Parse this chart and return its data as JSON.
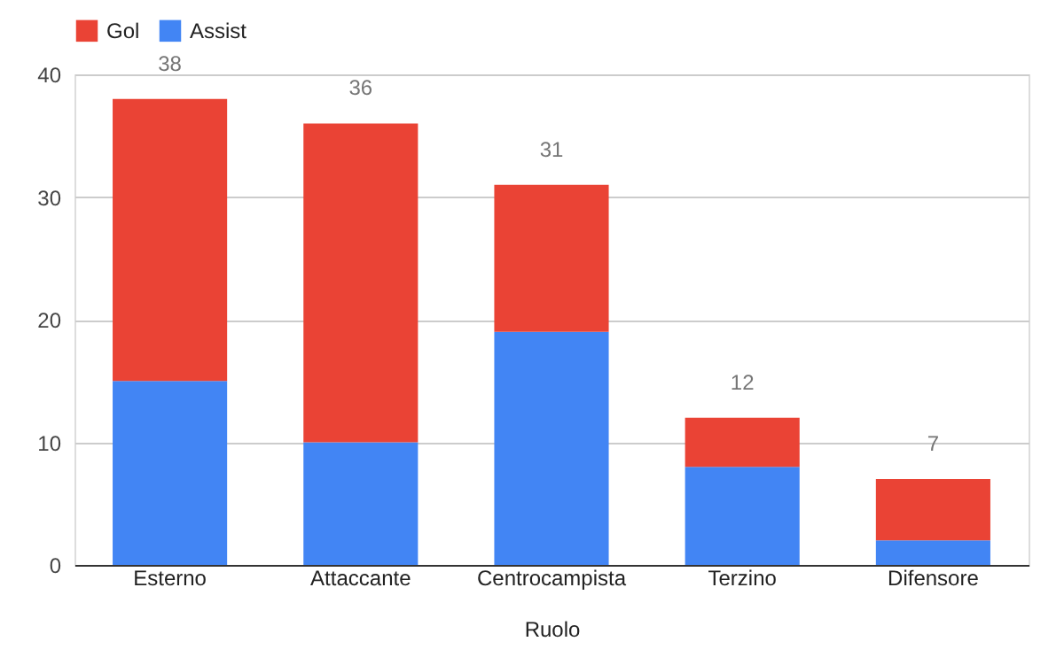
{
  "chart_data": {
    "type": "bar",
    "stacked": true,
    "xlabel": "Ruolo",
    "categories": [
      "Esterno",
      "Attaccante",
      "Centrocampista",
      "Terzino",
      "Difensore"
    ],
    "series": [
      {
        "name": "Assist",
        "color": "#4285f4",
        "values": [
          15,
          10,
          19,
          8,
          2
        ]
      },
      {
        "name": "Gol",
        "color": "#ea4335",
        "values": [
          23,
          26,
          12,
          4,
          5
        ]
      }
    ],
    "totals": [
      "38",
      "36",
      "31",
      "12",
      "7"
    ],
    "ylim": [
      0,
      40
    ],
    "yticks": [
      0,
      10,
      20,
      30,
      40
    ],
    "grid": "y",
    "legend": "top"
  }
}
